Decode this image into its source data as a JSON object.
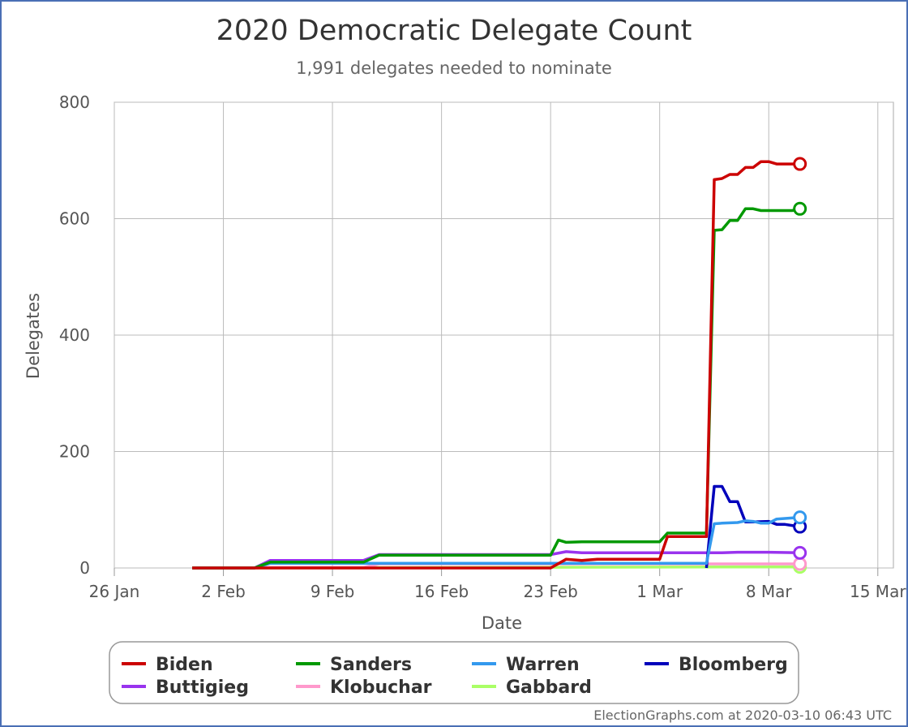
{
  "chart_data": {
    "type": "line",
    "title": "2020 Democratic Delegate Count",
    "subtitle": "1,991 delegates needed to nominate",
    "xlabel": "Date",
    "ylabel": "Delegates",
    "x_ticks": [
      "26 Jan",
      "2 Feb",
      "9 Feb",
      "16 Feb",
      "23 Feb",
      "1 Mar",
      "8 Mar",
      "15 Mar"
    ],
    "y_ticks": [
      "0",
      "200",
      "400",
      "600",
      "800"
    ],
    "xlim": [
      "2020-01-26",
      "2020-03-16"
    ],
    "ylim": [
      0,
      800
    ],
    "grid": true,
    "legend_position": "bottom",
    "credit": "ElectionGraphs.com at 2020-03-10 06:43 UTC",
    "series": [
      {
        "name": "Biden",
        "color": "#cc0000",
        "data": [
          [
            "2020-01-31",
            0
          ],
          [
            "2020-02-04",
            0
          ],
          [
            "2020-02-23",
            0
          ],
          [
            "2020-02-24",
            15
          ],
          [
            "2020-02-25",
            13
          ],
          [
            "2020-02-26",
            15
          ],
          [
            "2020-03-01",
            15
          ],
          [
            "2020-03-01.5",
            54
          ],
          [
            "2020-03-04",
            54
          ],
          [
            "2020-03-04.5",
            667
          ],
          [
            "2020-03-05",
            669
          ],
          [
            "2020-03-05.5",
            676
          ],
          [
            "2020-03-06",
            676
          ],
          [
            "2020-03-06.5",
            688
          ],
          [
            "2020-03-07",
            688
          ],
          [
            "2020-03-07.5",
            698
          ],
          [
            "2020-03-08",
            698
          ],
          [
            "2020-03-08.5",
            694
          ],
          [
            "2020-03-10",
            694
          ]
        ]
      },
      {
        "name": "Sanders",
        "color": "#009900",
        "data": [
          [
            "2020-01-31",
            0
          ],
          [
            "2020-02-04",
            0
          ],
          [
            "2020-02-05",
            10
          ],
          [
            "2020-02-11",
            10
          ],
          [
            "2020-02-12",
            22
          ],
          [
            "2020-02-23",
            22
          ],
          [
            "2020-02-23.5",
            48
          ],
          [
            "2020-02-24",
            44
          ],
          [
            "2020-02-25",
            45
          ],
          [
            "2020-03-01",
            45
          ],
          [
            "2020-03-01.5",
            60
          ],
          [
            "2020-03-04",
            60
          ],
          [
            "2020-03-04.5",
            580
          ],
          [
            "2020-03-05",
            581
          ],
          [
            "2020-03-05.5",
            597
          ],
          [
            "2020-03-06",
            597
          ],
          [
            "2020-03-06.5",
            617
          ],
          [
            "2020-03-07",
            617
          ],
          [
            "2020-03-07.5",
            614
          ],
          [
            "2020-03-09.5",
            614
          ],
          [
            "2020-03-10",
            617
          ]
        ]
      },
      {
        "name": "Warren",
        "color": "#3399ee",
        "data": [
          [
            "2020-01-31",
            0
          ],
          [
            "2020-02-04",
            0
          ],
          [
            "2020-02-05",
            8
          ],
          [
            "2020-02-11",
            8
          ],
          [
            "2020-02-12",
            8
          ],
          [
            "2020-03-04",
            8
          ],
          [
            "2020-03-04.5",
            76
          ],
          [
            "2020-03-05",
            77
          ],
          [
            "2020-03-06",
            78
          ],
          [
            "2020-03-06.5",
            81
          ],
          [
            "2020-03-07",
            80
          ],
          [
            "2020-03-07.5",
            77
          ],
          [
            "2020-03-08",
            77
          ],
          [
            "2020-03-08.5",
            84
          ],
          [
            "2020-03-10",
            87
          ]
        ]
      },
      {
        "name": "Bloomberg",
        "color": "#0000bb",
        "data": [
          [
            "2020-03-04",
            0
          ],
          [
            "2020-03-04.5",
            140
          ],
          [
            "2020-03-05",
            140
          ],
          [
            "2020-03-05.5",
            114
          ],
          [
            "2020-03-06",
            114
          ],
          [
            "2020-03-06.5",
            79
          ],
          [
            "2020-03-07",
            79
          ],
          [
            "2020-03-08",
            80
          ],
          [
            "2020-03-08.5",
            75
          ],
          [
            "2020-03-09",
            75
          ],
          [
            "2020-03-10",
            71
          ]
        ]
      },
      {
        "name": "Buttigieg",
        "color": "#9933ee",
        "data": [
          [
            "2020-02-04",
            0
          ],
          [
            "2020-02-05",
            13
          ],
          [
            "2020-02-11",
            13
          ],
          [
            "2020-02-12",
            23
          ],
          [
            "2020-02-23",
            23
          ],
          [
            "2020-02-24",
            28
          ],
          [
            "2020-02-25",
            26
          ],
          [
            "2020-03-05",
            26
          ],
          [
            "2020-03-06",
            27
          ],
          [
            "2020-03-08",
            27
          ],
          [
            "2020-03-10",
            26
          ]
        ]
      },
      {
        "name": "Klobuchar",
        "color": "#ff99cc",
        "data": [
          [
            "2020-01-31",
            0
          ],
          [
            "2020-02-04",
            0
          ],
          [
            "2020-02-05",
            1
          ],
          [
            "2020-02-11",
            1
          ],
          [
            "2020-02-12",
            7
          ],
          [
            "2020-03-10",
            7
          ]
        ]
      },
      {
        "name": "Gabbard",
        "color": "#aaff66",
        "data": [
          [
            "2020-01-31",
            0
          ],
          [
            "2020-03-10",
            2
          ]
        ]
      }
    ]
  }
}
